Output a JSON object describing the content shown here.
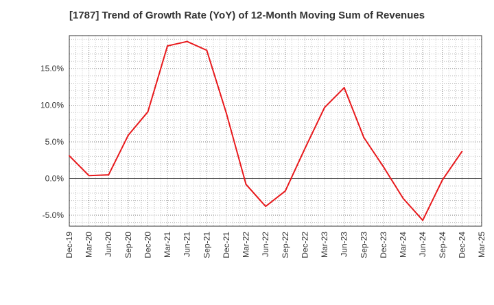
{
  "chart_data": {
    "type": "line",
    "title": "[1787]  Trend of Growth Rate (YoY) of 12-Month Moving Sum of Revenues",
    "xlabel": "",
    "ylabel": "",
    "x_tick_labels": [
      "Dec-19",
      "Mar-20",
      "Jun-20",
      "Sep-20",
      "Dec-20",
      "Mar-21",
      "Jun-21",
      "Sep-21",
      "Dec-21",
      "Mar-22",
      "Jun-22",
      "Sep-22",
      "Dec-22",
      "Mar-23",
      "Jun-23",
      "Sep-23",
      "Dec-23",
      "Mar-24",
      "Jun-24",
      "Sep-24",
      "Dec-24",
      "Mar-25"
    ],
    "y_tick_values": [
      -5.0,
      0.0,
      5.0,
      10.0,
      15.0
    ],
    "y_tick_labels": [
      "-5.0%",
      "0.0%",
      "5.0%",
      "10.0%",
      "15.0%"
    ],
    "ylim": [
      -6.5,
      19.5
    ],
    "grid": true,
    "zero_line": true,
    "series": [
      {
        "name": "",
        "color": "#e8191c",
        "x": [
          "Dec-19",
          "Mar-20",
          "Jun-20",
          "Sep-20",
          "Dec-20",
          "Mar-21",
          "Jun-21",
          "Sep-21",
          "Dec-21",
          "Mar-22",
          "Jun-22",
          "Sep-22",
          "Dec-22",
          "Mar-23",
          "Jun-23",
          "Sep-23",
          "Dec-23",
          "Mar-24",
          "Jun-24",
          "Sep-24",
          "Dec-24"
        ],
        "values": [
          3.1,
          0.4,
          0.5,
          5.9,
          9.1,
          18.1,
          18.7,
          17.5,
          8.9,
          -0.8,
          -3.8,
          -1.7,
          4.1,
          9.7,
          12.4,
          5.6,
          1.6,
          -2.7,
          -5.7,
          -0.2,
          3.7
        ]
      }
    ]
  }
}
